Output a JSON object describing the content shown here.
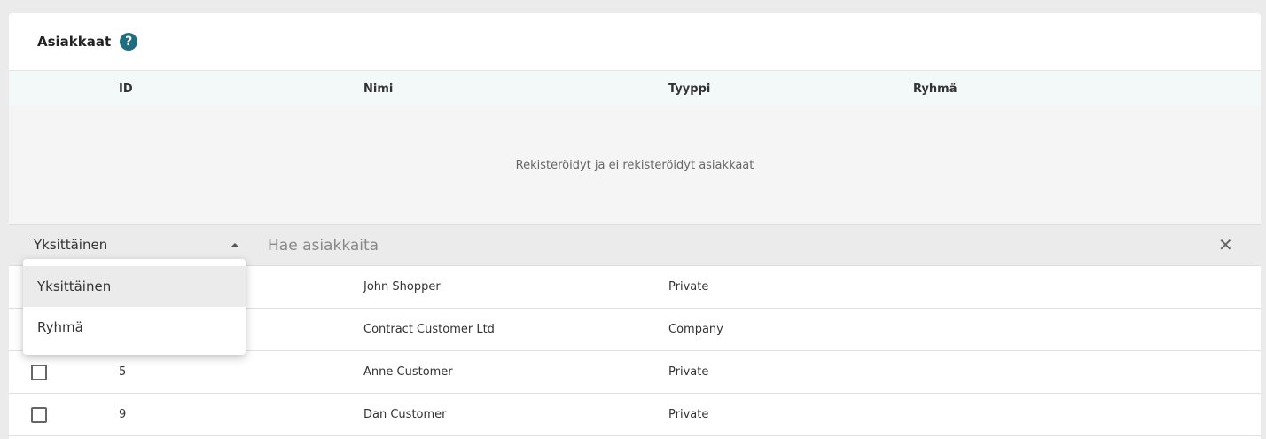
{
  "title": "Asiakkaat",
  "columns": [
    "ID",
    "Nimi",
    "Tyyppi",
    "Ryhmä"
  ],
  "empty_text": "Rekisteröidyt ja ei rekisteröidyt asiakkaat",
  "filter": {
    "selected": "Yksittäinen",
    "search_placeholder": "Hae asiakkaita",
    "options": [
      "Yksittäinen",
      "Ryhmä"
    ]
  },
  "rows": [
    {
      "id": "",
      "name": "John Shopper",
      "type": "Private"
    },
    {
      "id": "",
      "name": "Contract Customer Ltd",
      "type": "Company"
    },
    {
      "id": "5",
      "name": "Anne Customer",
      "type": "Private"
    },
    {
      "id": "9",
      "name": "Dan Customer",
      "type": "Private"
    }
  ]
}
